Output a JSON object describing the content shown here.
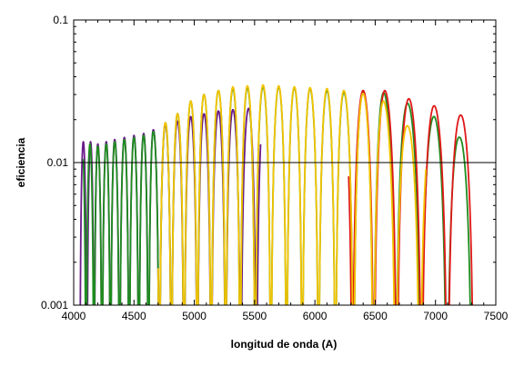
{
  "chart_data": {
    "type": "line",
    "title": "",
    "xlabel": "longitud de onda (A)",
    "ylabel": "eficiencia",
    "xlim": [
      4000,
      7500
    ],
    "ylim": [
      0.001,
      0.1
    ],
    "yscale": "log",
    "grid": false,
    "x_ticks": [
      4000,
      4500,
      5000,
      5500,
      6000,
      6500,
      7000,
      7500
    ],
    "x_tick_labels": [
      "4000",
      "4500",
      "5000",
      "5500",
      "6000",
      "6500",
      "7000",
      "7500"
    ],
    "y_ticks": [
      0.001,
      0.01,
      0.1
    ],
    "y_tick_labels": [
      "0.001",
      "0.01",
      "0.1"
    ],
    "reference_line": {
      "y": 0.01,
      "color": "#000000"
    },
    "series": [
      {
        "color": "#6a1a8a",
        "x_range": [
          4050,
          5550
        ],
        "peaks": [
          {
            "x": 4140,
            "y": 0.014
          },
          {
            "x": 4200,
            "y": 0.0135
          },
          {
            "x": 4270,
            "y": 0.014
          },
          {
            "x": 4340,
            "y": 0.0145
          },
          {
            "x": 4420,
            "y": 0.015
          },
          {
            "x": 4500,
            "y": 0.0155
          },
          {
            "x": 4580,
            "y": 0.016
          },
          {
            "x": 4660,
            "y": 0.017
          },
          {
            "x": 4760,
            "y": 0.0185
          },
          {
            "x": 4860,
            "y": 0.0195
          },
          {
            "x": 4970,
            "y": 0.021
          },
          {
            "x": 5080,
            "y": 0.022
          },
          {
            "x": 5200,
            "y": 0.023
          },
          {
            "x": 5320,
            "y": 0.0235
          },
          {
            "x": 5450,
            "y": 0.024
          }
        ]
      },
      {
        "color": "#1e8c1e",
        "x_range": [
          4080,
          7300
        ],
        "peaks": [
          {
            "x": 4135,
            "y": 0.0135
          },
          {
            "x": 4200,
            "y": 0.013
          },
          {
            "x": 4270,
            "y": 0.0135
          },
          {
            "x": 4340,
            "y": 0.014
          },
          {
            "x": 4420,
            "y": 0.0145
          },
          {
            "x": 4500,
            "y": 0.015
          },
          {
            "x": 4580,
            "y": 0.0155
          },
          {
            "x": 4660,
            "y": 0.0165
          },
          {
            "x": 4760,
            "y": 0.019
          },
          {
            "x": 4860,
            "y": 0.022
          },
          {
            "x": 4970,
            "y": 0.027
          },
          {
            "x": 5080,
            "y": 0.03
          },
          {
            "x": 5200,
            "y": 0.032
          },
          {
            "x": 5320,
            "y": 0.033
          },
          {
            "x": 5440,
            "y": 0.0335
          },
          {
            "x": 5570,
            "y": 0.034
          },
          {
            "x": 5700,
            "y": 0.034
          },
          {
            "x": 5830,
            "y": 0.0335
          },
          {
            "x": 5960,
            "y": 0.033
          },
          {
            "x": 6100,
            "y": 0.032
          },
          {
            "x": 6240,
            "y": 0.031
          },
          {
            "x": 6400,
            "y": 0.031
          },
          {
            "x": 6570,
            "y": 0.031
          },
          {
            "x": 6770,
            "y": 0.026
          },
          {
            "x": 6990,
            "y": 0.021
          },
          {
            "x": 7200,
            "y": 0.015
          }
        ]
      },
      {
        "color": "#e01818",
        "x_range": [
          6280,
          7320
        ],
        "peaks": [
          {
            "x": 6400,
            "y": 0.032
          },
          {
            "x": 6580,
            "y": 0.032
          },
          {
            "x": 6780,
            "y": 0.028
          },
          {
            "x": 6990,
            "y": 0.025
          },
          {
            "x": 7210,
            "y": 0.0215
          }
        ]
      },
      {
        "color": "#f4c400",
        "x_range": [
          4700,
          6920
        ],
        "peaks": [
          {
            "x": 4760,
            "y": 0.019
          },
          {
            "x": 4860,
            "y": 0.022
          },
          {
            "x": 4970,
            "y": 0.027
          },
          {
            "x": 5080,
            "y": 0.03
          },
          {
            "x": 5200,
            "y": 0.032
          },
          {
            "x": 5320,
            "y": 0.034
          },
          {
            "x": 5440,
            "y": 0.0345
          },
          {
            "x": 5570,
            "y": 0.035
          },
          {
            "x": 5700,
            "y": 0.0345
          },
          {
            "x": 5830,
            "y": 0.034
          },
          {
            "x": 5960,
            "y": 0.0335
          },
          {
            "x": 6100,
            "y": 0.033
          },
          {
            "x": 6240,
            "y": 0.032
          },
          {
            "x": 6400,
            "y": 0.0305
          },
          {
            "x": 6570,
            "y": 0.027
          },
          {
            "x": 6770,
            "y": 0.018
          }
        ]
      }
    ]
  }
}
